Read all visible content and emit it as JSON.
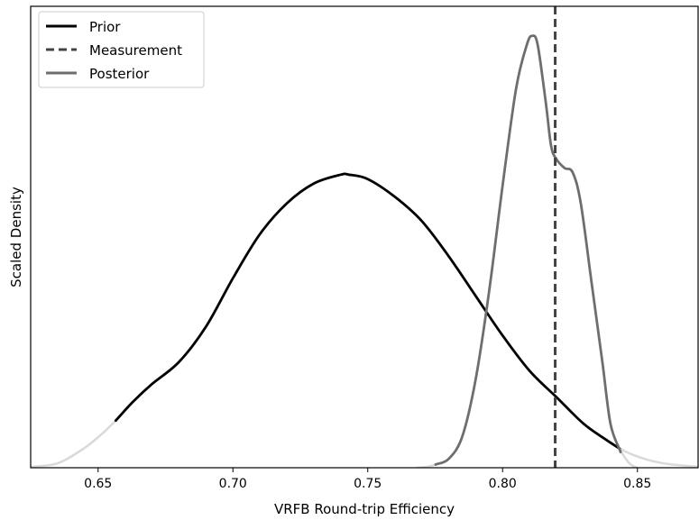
{
  "chart_data": {
    "type": "line",
    "xlabel": "VRFB Round-trip Efficiency",
    "ylabel": "Scaled Density",
    "xlim": [
      0.625,
      0.8725
    ],
    "ylim": [
      0,
      1
    ],
    "x_ticks": [
      "0.65",
      "0.70",
      "0.75",
      "0.80",
      "0.85"
    ],
    "x_tick_values": [
      0.65,
      0.7,
      0.75,
      0.8,
      0.85
    ],
    "y_ticks_shown": false,
    "grid": false,
    "legend": {
      "placement": "top-left",
      "entries": [
        {
          "label": "Prior",
          "style": "solid",
          "color": "#000000"
        },
        {
          "label": "Measurement",
          "style": "dashed",
          "color": "#444444"
        },
        {
          "label": "Posterior",
          "style": "solid",
          "color": "#6e6e6e"
        }
      ]
    },
    "measurement_x": 0.8195,
    "series": [
      {
        "name": "Prior",
        "color": "#000000",
        "tail_color": "#d9d9d9",
        "solid_range": [
          0.657,
          0.843
        ],
        "x": [
          0.625,
          0.635,
          0.645,
          0.652,
          0.657,
          0.663,
          0.67,
          0.68,
          0.69,
          0.7,
          0.71,
          0.72,
          0.73,
          0.74,
          0.743,
          0.75,
          0.76,
          0.77,
          0.78,
          0.79,
          0.8,
          0.81,
          0.82,
          0.83,
          0.838,
          0.843,
          0.848,
          0.855,
          0.862,
          0.8725
        ],
        "y": [
          0.002,
          0.01,
          0.045,
          0.08,
          0.11,
          0.15,
          0.19,
          0.24,
          0.32,
          0.43,
          0.53,
          0.6,
          0.645,
          0.665,
          0.665,
          0.655,
          0.615,
          0.56,
          0.48,
          0.39,
          0.3,
          0.22,
          0.16,
          0.1,
          0.065,
          0.045,
          0.03,
          0.016,
          0.008,
          0.002
        ]
      },
      {
        "name": "Posterior",
        "color": "#6e6e6e",
        "tail_color": "#d9d9d9",
        "solid_range": [
          0.7755,
          0.8435
        ],
        "x": [
          0.768,
          0.772,
          0.7755,
          0.78,
          0.785,
          0.79,
          0.795,
          0.8,
          0.805,
          0.809,
          0.811,
          0.813,
          0.816,
          0.818,
          0.82,
          0.823,
          0.826,
          0.829,
          0.833,
          0.837,
          0.84,
          0.8435,
          0.847,
          0.85
        ],
        "y": [
          0.0,
          0.002,
          0.008,
          0.02,
          0.07,
          0.2,
          0.4,
          0.64,
          0.86,
          0.96,
          0.98,
          0.96,
          0.83,
          0.73,
          0.7,
          0.68,
          0.67,
          0.6,
          0.42,
          0.24,
          0.1,
          0.04,
          0.01,
          0.0
        ]
      }
    ]
  }
}
